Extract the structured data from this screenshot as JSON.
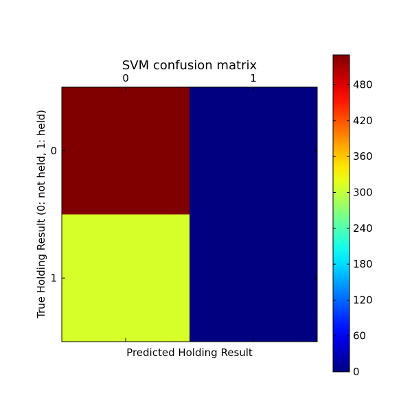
{
  "chart_data": {
    "type": "heatmap",
    "title": "SVM confusion matrix",
    "xlabel": "Predicted Holding Result",
    "ylabel": "True Holding Result (0: not held, 1: held)",
    "x_categories": [
      "0",
      "1"
    ],
    "y_categories": [
      "0",
      "1"
    ],
    "matrix": [
      [
        530,
        0
      ],
      [
        310,
        0
      ]
    ],
    "colormap": "jet",
    "colorbar": {
      "min": 0,
      "max": 530,
      "ticks": [
        0,
        60,
        120,
        180,
        240,
        300,
        360,
        420,
        480
      ],
      "tick_labels": [
        "0",
        "60",
        "120",
        "180",
        "240",
        "300",
        "360",
        "420",
        "480"
      ]
    },
    "grid": false
  }
}
